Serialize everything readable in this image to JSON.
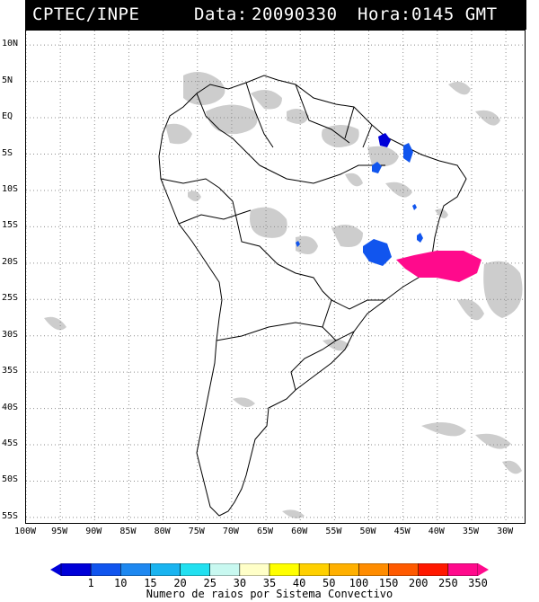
{
  "header": {
    "source": "CPTEC/INPE",
    "date_label": "Data:",
    "date": "20090330",
    "time_label": "Hora:",
    "time": "0145 GMT"
  },
  "map": {
    "lat_labels": [
      "10N",
      "5N",
      "EQ",
      "5S",
      "10S",
      "15S",
      "20S",
      "25S",
      "30S",
      "35S",
      "40S",
      "45S",
      "50S",
      "55S"
    ],
    "lon_labels": [
      "100W",
      "95W",
      "90W",
      "85W",
      "80W",
      "75W",
      "70W",
      "65W",
      "60W",
      "55W",
      "50W",
      "45W",
      "40W",
      "35W",
      "30W"
    ],
    "grid": true,
    "lon_range": [
      -100,
      -27
    ],
    "lat_range": [
      -56,
      12
    ]
  },
  "colorbar": {
    "labels": [
      "1",
      "10",
      "15",
      "20",
      "25",
      "30",
      "35",
      "40",
      "50",
      "100",
      "150",
      "200",
      "250",
      "350"
    ],
    "colors": [
      "#0000d8",
      "#1155ee",
      "#1e88f0",
      "#1ab4f0",
      "#22e0f0",
      "#c8f8f0",
      "#ffffc8",
      "#ffff00",
      "#ffd000",
      "#ffb000",
      "#ff8c00",
      "#ff5a00",
      "#ff1800",
      "#ff0a8c"
    ],
    "title": "Numero de raios por Sistema Convectivo"
  },
  "colors": {
    "cloud": "#c8c8c8",
    "grid": "#8c8c8c"
  }
}
